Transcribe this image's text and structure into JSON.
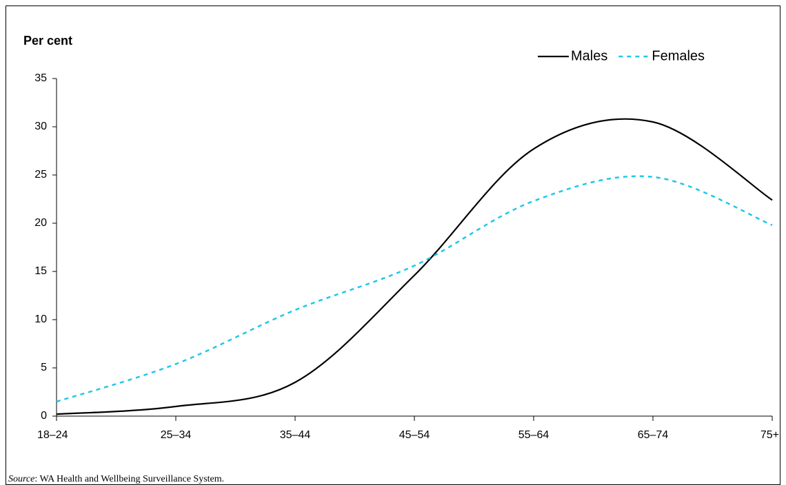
{
  "chart_data": {
    "type": "line",
    "y_axis_label": "Per cent",
    "categories": [
      "18–24",
      "25–34",
      "35–44",
      "45–54",
      "55–64",
      "65–74",
      "75+"
    ],
    "series": [
      {
        "name": "Males",
        "color": "#000000",
        "dashed": false,
        "values": [
          0.2,
          1.0,
          3.5,
          14.6,
          27.7,
          30.5,
          22.4
        ]
      },
      {
        "name": "Females",
        "color": "#1ec8e6",
        "dashed": true,
        "values": [
          1.5,
          5.4,
          11.0,
          15.6,
          22.3,
          24.8,
          19.8
        ]
      }
    ],
    "ylim": [
      0,
      35
    ],
    "yticks": [
      0,
      5,
      10,
      15,
      20,
      25,
      30,
      35
    ],
    "grid": false,
    "legend": "top-right",
    "source_label": "Source",
    "source_text": ":  WA Health and Wellbeing Surveillance System."
  }
}
